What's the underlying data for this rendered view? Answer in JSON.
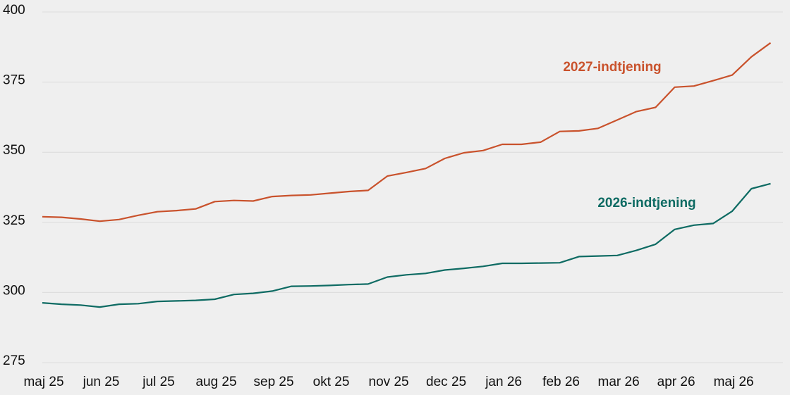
{
  "chart_data": {
    "type": "line",
    "categories": [
      "maj 25",
      null,
      null,
      "jun 25",
      null,
      null,
      "jul 25",
      null,
      null,
      "aug 25",
      null,
      null,
      "sep 25",
      null,
      null,
      "okt 25",
      null,
      null,
      "nov 25",
      null,
      null,
      "dec 25",
      null,
      null,
      "jan 26",
      null,
      null,
      "feb 26",
      null,
      null,
      "mar 26",
      null,
      null,
      "apr 26",
      null,
      null,
      "maj 26",
      null,
      null
    ],
    "series": [
      {
        "name": "2027-indtjening",
        "color": "#c9522c",
        "values": [
          327.0,
          326.8,
          326.2,
          325.4,
          326.0,
          327.5,
          328.8,
          329.2,
          329.8,
          332.4,
          332.8,
          332.6,
          334.2,
          334.6,
          334.8,
          335.4,
          336.0,
          336.4,
          341.5,
          342.8,
          344.2,
          347.8,
          349.8,
          350.6,
          352.8,
          352.8,
          353.6,
          357.4,
          357.6,
          358.5,
          361.5,
          364.5,
          366.0,
          373.2,
          373.6,
          375.5,
          377.5,
          384.0,
          389.0
        ]
      },
      {
        "name": "2026-indtjening",
        "color": "#0e6b63",
        "values": [
          296.3,
          295.8,
          295.5,
          294.8,
          295.8,
          296.0,
          296.8,
          297.0,
          297.2,
          297.6,
          299.3,
          299.7,
          300.5,
          302.2,
          302.3,
          302.5,
          302.8,
          303.0,
          305.5,
          306.3,
          306.8,
          308.0,
          308.6,
          309.3,
          310.4,
          310.4,
          310.5,
          310.6,
          312.8,
          313.0,
          313.2,
          315.0,
          317.2,
          322.5,
          324.0,
          324.6,
          329.0,
          337.0,
          338.8
        ]
      }
    ],
    "ylim": [
      275,
      400
    ],
    "yticks": [
      275,
      300,
      325,
      350,
      375,
      400
    ],
    "grid": true
  }
}
